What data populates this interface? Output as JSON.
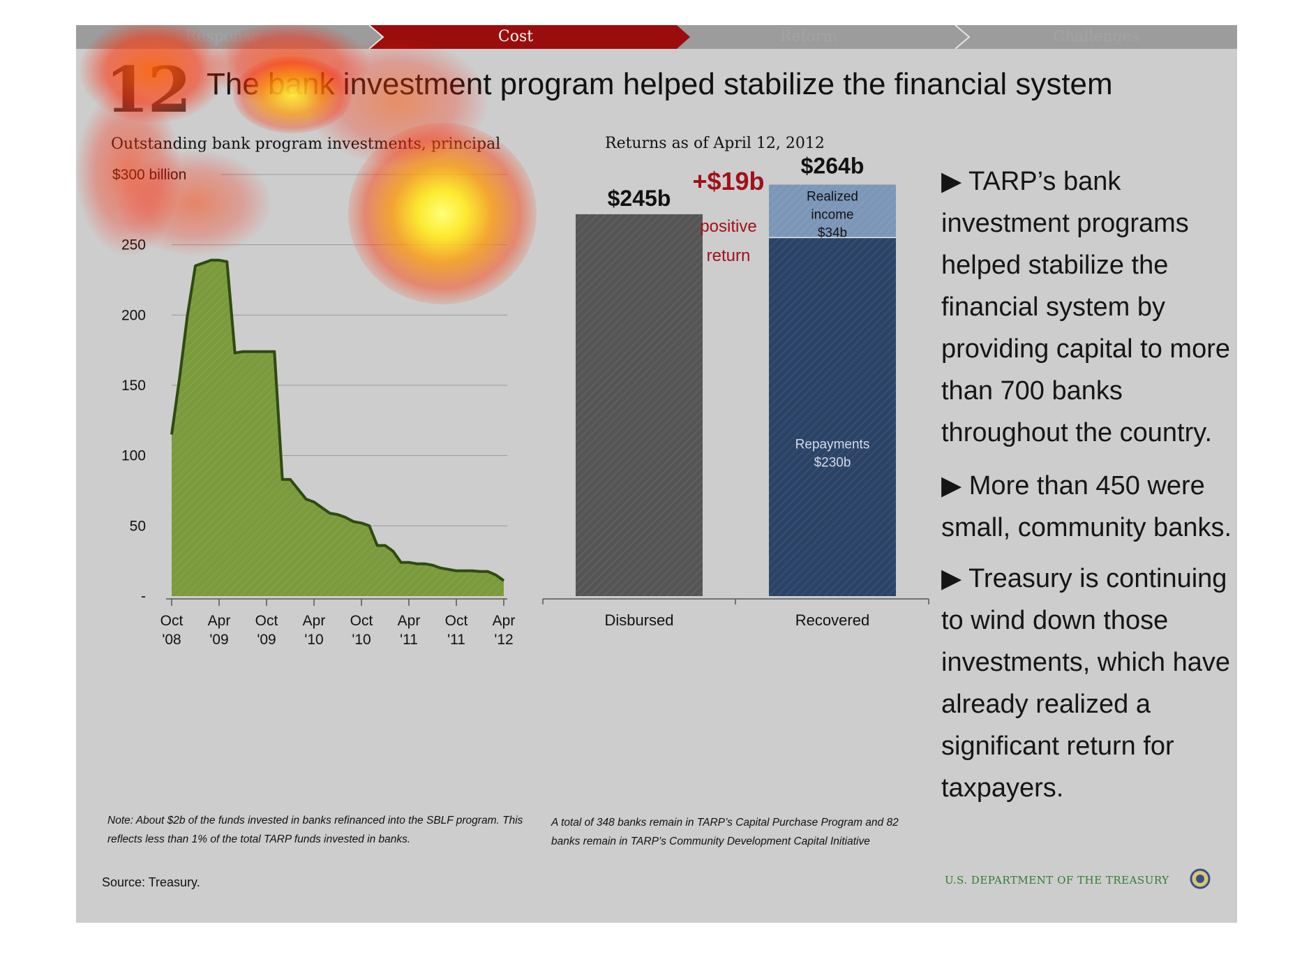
{
  "nav": {
    "items": [
      "Response",
      "Cost",
      "Reform",
      "Challenges"
    ],
    "active": "Cost",
    "active_color": "#9b0d0d",
    "inactive_color": "#9c9c9c"
  },
  "slide": {
    "number": "12",
    "title": "The bank investment program helped stabilize the financial system"
  },
  "left_chart_title": "Outstanding bank program investments, principal",
  "right_chart_title": "Returns as of April 12, 2012",
  "chart_data": [
    {
      "type": "area",
      "title": "Outstanding bank program investments, principal",
      "y_unit_label": "$300 billion",
      "ylim": [
        0,
        300
      ],
      "yticks": [
        0,
        50,
        100,
        150,
        200,
        250,
        300
      ],
      "ytick_labels": [
        "-",
        "50",
        "100",
        "150",
        "200",
        "250",
        "$300 billion"
      ],
      "x_tick_labels": [
        [
          "Oct",
          "'08"
        ],
        [
          "Apr",
          "'09"
        ],
        [
          "Oct",
          "'09"
        ],
        [
          "Apr",
          "'10"
        ],
        [
          "Oct",
          "'10"
        ],
        [
          "Apr",
          "'11"
        ],
        [
          "Oct",
          "'11"
        ],
        [
          "Apr",
          "'12"
        ]
      ],
      "x": [
        "2008-10",
        "2008-11",
        "2008-12",
        "2009-01",
        "2009-02",
        "2009-03",
        "2009-04",
        "2009-05",
        "2009-06",
        "2009-07",
        "2009-08",
        "2009-09",
        "2009-10",
        "2009-11",
        "2009-12",
        "2010-01",
        "2010-02",
        "2010-03",
        "2010-04",
        "2010-05",
        "2010-06",
        "2010-07",
        "2010-08",
        "2010-09",
        "2010-10",
        "2010-11",
        "2010-12",
        "2011-01",
        "2011-02",
        "2011-03",
        "2011-04",
        "2011-05",
        "2011-06",
        "2011-07",
        "2011-08",
        "2011-09",
        "2011-10",
        "2011-11",
        "2011-12",
        "2012-01",
        "2012-02",
        "2012-03",
        "2012-04"
      ],
      "values": [
        115,
        155,
        200,
        235,
        237,
        239,
        239,
        238,
        173,
        174,
        174,
        174,
        174,
        174,
        83,
        83,
        76,
        69,
        67,
        63,
        59,
        58,
        56,
        53,
        52,
        50,
        36,
        36,
        32,
        24,
        24,
        23,
        23,
        22,
        20,
        19,
        18,
        18,
        18,
        17.5,
        17.5,
        15,
        11
      ],
      "fill": "#7a9a3c",
      "line": "#2e4a12"
    },
    {
      "type": "bar",
      "title": "Returns as of April 12, 2012",
      "categories": [
        "Disbursed",
        "Recovered"
      ],
      "series": [
        {
          "name": "Repayments",
          "values": [
            245,
            230
          ],
          "label": "Repayments $230b",
          "color": "#2b4366"
        },
        {
          "name": "Realized income",
          "values": [
            0,
            34
          ],
          "label": "Realized income $34b",
          "color": "#7c96b8"
        }
      ],
      "totals": [
        "$245b",
        "$264b"
      ],
      "total_values": [
        245,
        264
      ],
      "difference_label": "+$19b",
      "difference_value": 19,
      "difference_note": [
        "positive",
        "return"
      ],
      "disbursed_color": "#555555",
      "ylim": [
        0,
        300
      ]
    }
  ],
  "bullets": [
    "TARP’s bank investment programs helped stabilize the financial system by providing capital to more than 700 banks throughout the country.",
    "More than 450 were small, community banks.",
    "Treasury is continuing to wind down those investments, which have already realized a significant return for taxpayers."
  ],
  "notes": {
    "left": "Note: About $2b of the funds invested in banks refinanced into the SBLF program. This reflects less than 1% of the total TARP funds invested in banks.",
    "right": "A total of 348 banks remain in TARP’s Capital Purchase Program and 82 banks remain in TARP’s Community Development Capital Initiative"
  },
  "source": "Source: Treasury.",
  "department": "U.S. DEPARTMENT OF THE TREASURY",
  "heatmap_colors": {
    "hot": "#fff34a",
    "warm": "#ff8a00",
    "cool": "#ff2a00"
  }
}
